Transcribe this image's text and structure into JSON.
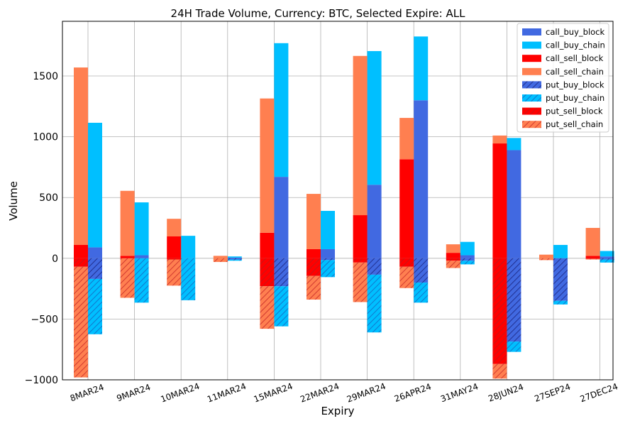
{
  "chart_data": {
    "type": "bar",
    "title": "24H Trade Volume, Currency: BTC, Selected Expire: ALL",
    "xlabel": "Expiry",
    "ylabel": "Volume",
    "ylim": [
      -1000,
      1950
    ],
    "yticks": [
      -1000,
      -500,
      0,
      500,
      1000,
      1500
    ],
    "ytick_labels": [
      "−1000",
      "−500",
      "0",
      "500",
      "1000",
      "1500"
    ],
    "grid": true,
    "legend_position": "top-right",
    "categories": [
      "8MAR24",
      "9MAR24",
      "10MAR24",
      "11MAR24",
      "15MAR24",
      "22MAR24",
      "29MAR24",
      "26APR24",
      "31MAY24",
      "28JUN24",
      "27SEP24",
      "27DEC24"
    ],
    "series": [
      {
        "name": "call_buy_block",
        "color": "#4169e1",
        "hatch": false,
        "side": "buy",
        "direction": "up",
        "values": [
          90,
          25,
          0,
          5,
          670,
          75,
          605,
          1300,
          25,
          890,
          0,
          15
        ]
      },
      {
        "name": "call_buy_chain",
        "color": "#00bfff",
        "hatch": false,
        "side": "buy",
        "direction": "up",
        "values": [
          1025,
          435,
          185,
          10,
          1100,
          315,
          1100,
          525,
          110,
          100,
          110,
          45
        ]
      },
      {
        "name": "call_sell_block",
        "color": "#ff0000",
        "hatch": false,
        "side": "sell",
        "direction": "up",
        "values": [
          110,
          20,
          180,
          0,
          210,
          75,
          355,
          815,
          45,
          945,
          0,
          20
        ]
      },
      {
        "name": "call_sell_chain",
        "color": "#ff7f50",
        "hatch": false,
        "side": "sell",
        "direction": "up",
        "values": [
          1460,
          535,
          145,
          20,
          1105,
          455,
          1310,
          340,
          70,
          65,
          30,
          230
        ]
      },
      {
        "name": "put_buy_block",
        "color": "#4169e1",
        "hatch": true,
        "side": "buy",
        "direction": "down",
        "values": [
          170,
          0,
          0,
          10,
          230,
          15,
          135,
          200,
          20,
          685,
          350,
          10
        ]
      },
      {
        "name": "put_buy_chain",
        "color": "#00bfff",
        "hatch": true,
        "side": "buy",
        "direction": "down",
        "values": [
          455,
          365,
          345,
          10,
          330,
          140,
          475,
          165,
          30,
          85,
          30,
          25
        ]
      },
      {
        "name": "put_sell_block",
        "color": "#ff0000",
        "hatch": true,
        "side": "sell",
        "direction": "down",
        "values": [
          70,
          0,
          10,
          0,
          230,
          145,
          35,
          70,
          20,
          870,
          0,
          5
        ]
      },
      {
        "name": "put_sell_chain",
        "color": "#ff7f50",
        "hatch": true,
        "side": "sell",
        "direction": "down",
        "values": [
          910,
          325,
          215,
          30,
          350,
          195,
          325,
          175,
          60,
          120,
          15,
          5
        ]
      }
    ]
  }
}
